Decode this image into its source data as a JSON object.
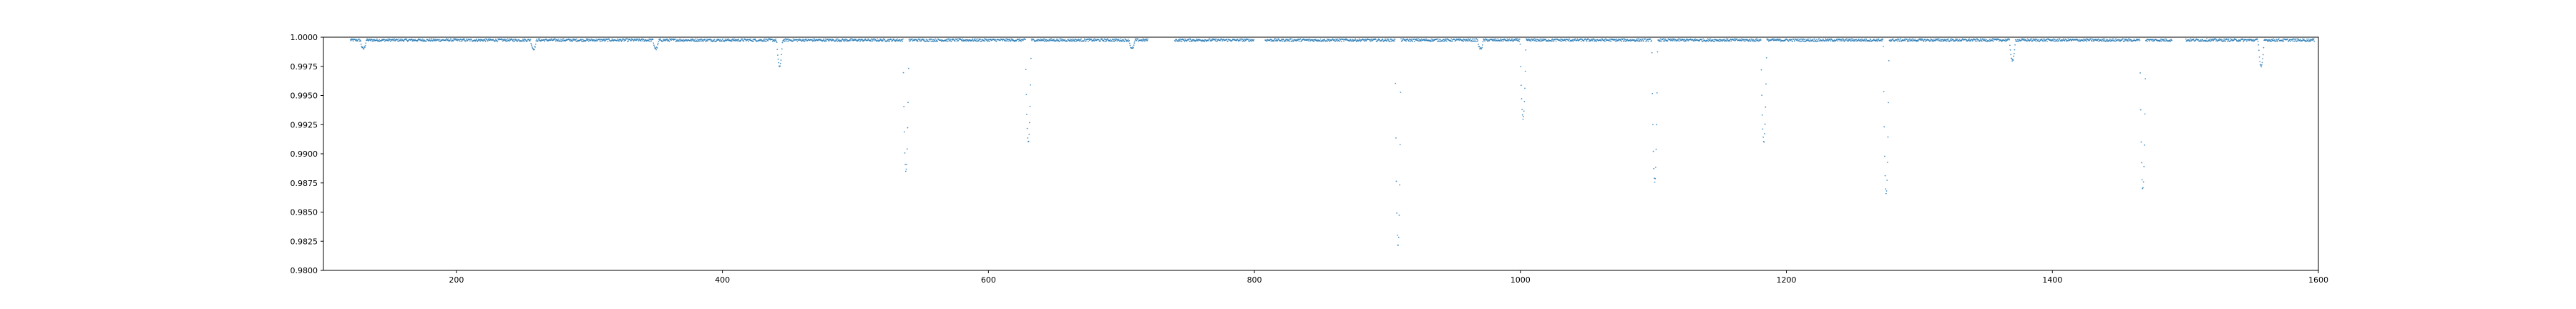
{
  "chart_data": {
    "type": "scatter",
    "title": "",
    "xlabel": "",
    "ylabel": "",
    "xlim": [
      100,
      1600
    ],
    "ylim": [
      0.98,
      1.0
    ],
    "grid": false,
    "legend": "none",
    "color": "#1f77b4",
    "x_ticks": [
      200,
      400,
      600,
      800,
      1000,
      1200,
      1400,
      1600
    ],
    "x_tick_labels": [
      "200",
      "400",
      "600",
      "800",
      "1000",
      "1200",
      "1400",
      "1600"
    ],
    "y_ticks": [
      0.98,
      0.9825,
      0.985,
      0.9875,
      0.99,
      0.9925,
      0.995,
      0.9975,
      1.0
    ],
    "y_tick_labels": [
      "0.9800",
      "0.9825",
      "0.9850",
      "0.9875",
      "0.9900",
      "0.9925",
      "0.9950",
      "0.9975",
      "1.0000"
    ],
    "baseline": 0.99975,
    "observed_ranges": [
      [
        120,
        720
      ],
      [
        740,
        800
      ],
      [
        808,
        1490
      ],
      [
        1500,
        1597
      ]
    ],
    "dips": [
      {
        "center": 130,
        "min": 0.999
      },
      {
        "center": 258,
        "min": 0.999
      },
      {
        "center": 350,
        "min": 0.999
      },
      {
        "center": 443,
        "min": 0.9975
      },
      {
        "center": 538,
        "min": 0.9885
      },
      {
        "center": 630,
        "min": 0.991
      },
      {
        "center": 708,
        "min": 0.999
      },
      {
        "center": 908,
        "min": 0.982
      },
      {
        "center": 970,
        "min": 0.999
      },
      {
        "center": 1002,
        "min": 0.993
      },
      {
        "center": 1101,
        "min": 0.9875
      },
      {
        "center": 1183,
        "min": 0.991
      },
      {
        "center": 1275,
        "min": 0.9865
      },
      {
        "center": 1370,
        "min": 0.998
      },
      {
        "center": 1468,
        "min": 0.987
      },
      {
        "center": 1557,
        "min": 0.9975
      }
    ]
  }
}
